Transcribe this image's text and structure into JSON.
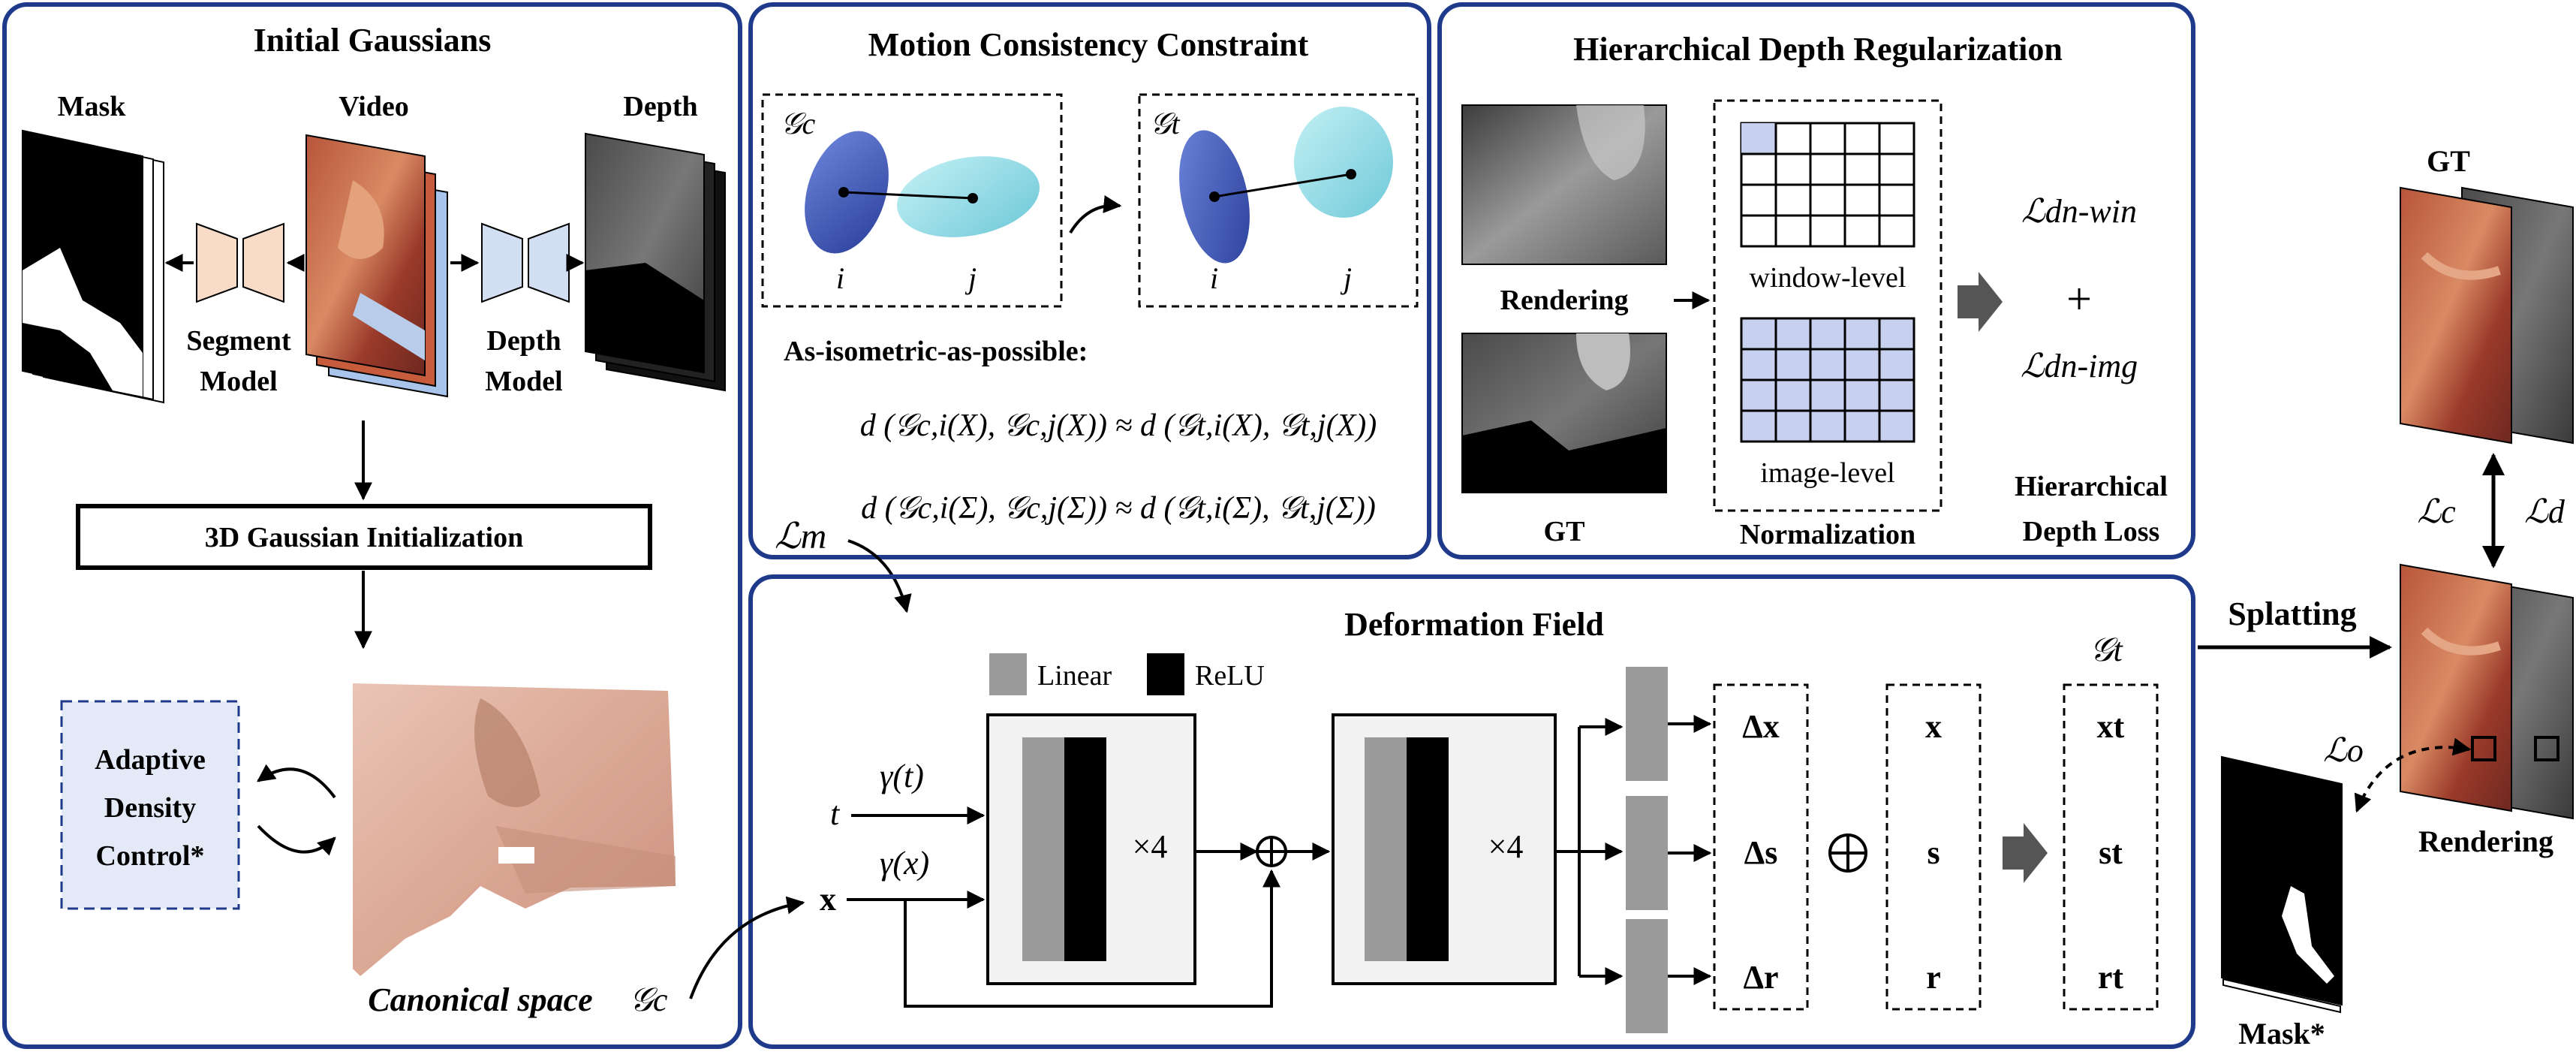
{
  "colors": {
    "panel_border": "#1f3a8a",
    "encoder_fill": "#f9dcc8",
    "depth_model_fill": "#d2def1",
    "adc_fill": "#e4e9f7",
    "grid_fill": "#c7d0ef",
    "gaussian_dark": "#3a55b8",
    "gaussian_light": "#8fdbe6",
    "linear_gray": "#9a9a9a",
    "block_bg": "#f2f2f2"
  },
  "panels": {
    "initial": {
      "title": "Initial Gaussians",
      "mask_label": "Mask",
      "video_label": "Video",
      "depth_label": "Depth",
      "segment_model_l1": "Segment",
      "segment_model_l2": "Model",
      "depth_model_l1": "Depth",
      "depth_model_l2": "Model",
      "init_box": "3D Gaussian Initialization",
      "adc_l1": "Adaptive",
      "adc_l2": "Density",
      "adc_l3": "Control*",
      "canonical_label": "Canonical space",
      "canonical_symbol": "𝒢c"
    },
    "motion": {
      "title": "Motion Consistency Constraint",
      "gc_label": "𝒢c",
      "gt_label": "𝒢t",
      "i_label": "i",
      "j_label": "j",
      "aiap_label": "As-isometric-as-possible:",
      "eq1": "d (𝒢c,i(X), 𝒢c,j(X)) ≈ d (𝒢t,i(X), 𝒢t,j(X))",
      "eq2": "d (𝒢c,i(Σ), 𝒢c,j(Σ)) ≈ d (𝒢t,i(Σ), 𝒢t,j(Σ))",
      "loss_label": "ℒm"
    },
    "depth_reg": {
      "title": "Hierarchical Depth Regularization",
      "rendering_label": "Rendering",
      "gt_label": "GT",
      "window_label": "window-level",
      "image_label": "image-level",
      "normalization_label": "Normalization",
      "loss_win": "ℒdn-win",
      "plus": "+",
      "loss_img": "ℒdn-img",
      "hdl_l1": "Hierarchical",
      "hdl_l2": "Depth Loss"
    },
    "deformation": {
      "title": "Deformation Field",
      "legend_linear": "Linear",
      "legend_relu": "ReLU",
      "t_label": "t",
      "gamma_t": "γ(t)",
      "gamma_x": "γ(x)",
      "x_label": "x",
      "times4_a": "×4",
      "times4_b": "×4",
      "delta_x": "Δx",
      "delta_s": "Δs",
      "delta_r": "Δr",
      "x_out": "x",
      "s_out": "s",
      "r_out": "r",
      "gt_label": "𝒢t",
      "xt": "xt",
      "st": "st",
      "rt": "rt"
    },
    "right": {
      "gt_label": "GT",
      "splatting_label": "Splatting",
      "lc_label": "ℒc",
      "ld_label": "ℒd",
      "lo_label": "ℒo",
      "rendering_label": "Rendering",
      "mask_label": "Mask*"
    }
  }
}
